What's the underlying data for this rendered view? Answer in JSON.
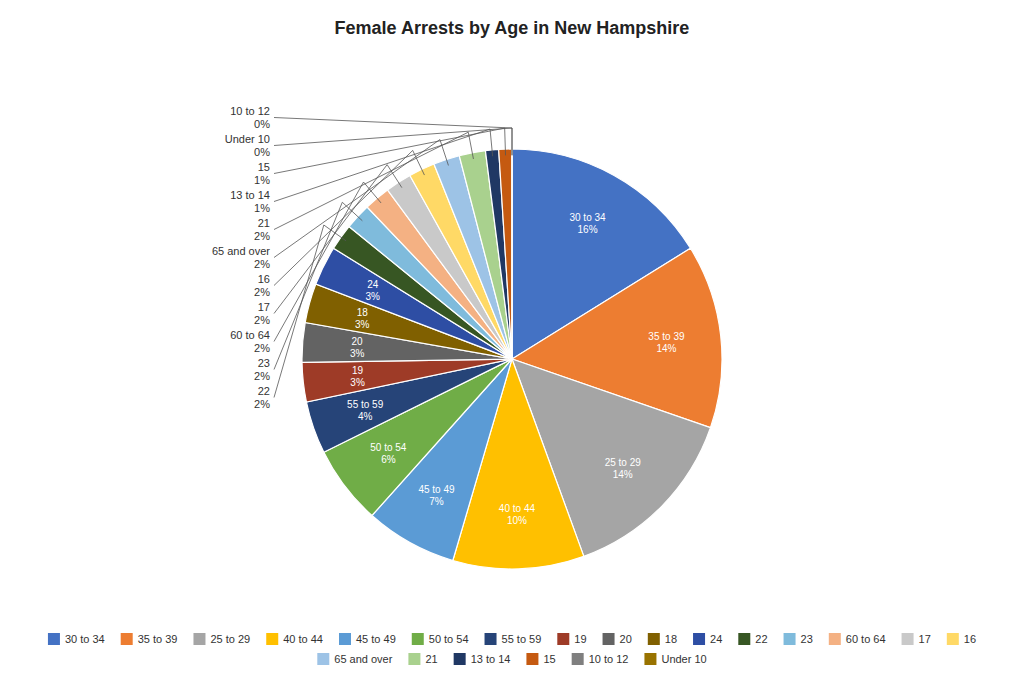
{
  "chart_data": {
    "type": "pie",
    "title": "Female Arrests by Age in New Hampshire",
    "categories": [
      "30 to 34",
      "35 to 39",
      "25 to 29",
      "40 to 44",
      "45 to 49",
      "50 to 54",
      "55 to 59",
      "19",
      "20",
      "18",
      "24",
      "22",
      "23",
      "60 to 64",
      "17",
      "16",
      "65 and over",
      "21",
      "13 to 14",
      "15",
      "10 to 12",
      "Under 10"
    ],
    "values": [
      16,
      14,
      14,
      10,
      7,
      6,
      4,
      3,
      3,
      3,
      3,
      2,
      2,
      2,
      2,
      2,
      2,
      2,
      1,
      1,
      0,
      0
    ],
    "value_labels": [
      "16%",
      "14%",
      "14%",
      "10%",
      "7%",
      "6%",
      "4%",
      "3%",
      "3%",
      "3%",
      "3%",
      "2%",
      "2%",
      "2%",
      "2%",
      "2%",
      "2%",
      "2%",
      "1%",
      "1%",
      "0%",
      "0%"
    ],
    "colors": [
      "#4472C4",
      "#ED7D31",
      "#A5A5A5",
      "#FFC000",
      "#5B9BD5",
      "#70AD47",
      "#264478",
      "#9E3B27",
      "#636363",
      "#806000",
      "#2E4EA4",
      "#375623",
      "#7FBBDC",
      "#F4B183",
      "#C9C9C9",
      "#FFD966",
      "#9DC3E6",
      "#A9D18E",
      "#203864",
      "#C55A11",
      "#7F7F7F",
      "#997300"
    ],
    "data_labels": true,
    "legend": "bottom"
  }
}
